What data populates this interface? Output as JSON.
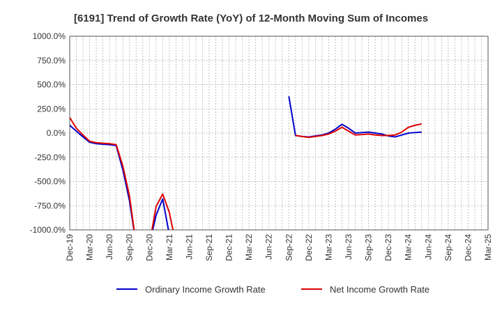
{
  "chart_data": {
    "type": "line",
    "title": "[6191]  Trend of Growth Rate (YoY) of 12-Month Moving Sum of Incomes",
    "xlabel": "",
    "ylabel": "",
    "ylim": [
      -1000,
      1000
    ],
    "y_ticks": [
      "1000.0%",
      "750.0%",
      "500.0%",
      "250.0%",
      "0.0%",
      "-250.0%",
      "-500.0%",
      "-750.0%",
      "-1000.0%"
    ],
    "y_tick_values": [
      1000,
      750,
      500,
      250,
      0,
      -250,
      -500,
      -750,
      -1000
    ],
    "x_ticks": [
      "Dec-19",
      "Mar-20",
      "Jun-20",
      "Sep-20",
      "Dec-20",
      "Mar-21",
      "Jun-21",
      "Sep-21",
      "Dec-21",
      "Mar-22",
      "Jun-22",
      "Sep-22",
      "Dec-22",
      "Mar-23",
      "Jun-23",
      "Sep-23",
      "Dec-23",
      "Mar-24",
      "Jun-24",
      "Sep-24",
      "Dec-24",
      "Mar-25"
    ],
    "grid": true,
    "legend_position": "bottom",
    "series": [
      {
        "name": "Ordinary Income Growth Rate",
        "color": "#0000cc",
        "values": [
          80,
          20,
          -40,
          -95,
          -110,
          -115,
          -120,
          -130,
          -380,
          -700,
          -1150,
          null,
          -1150,
          -850,
          -680,
          -1050,
          null,
          null,
          null,
          null,
          null,
          null,
          null,
          null,
          null,
          null,
          null,
          null,
          null,
          null,
          null,
          null,
          null,
          380,
          -25,
          -35,
          -40,
          -30,
          -20,
          0,
          40,
          90,
          50,
          0,
          5,
          10,
          0,
          -10,
          -30,
          -40,
          -20,
          0,
          5,
          10
        ]
      },
      {
        "name": "Net Income Growth Rate",
        "color": "#dd0000",
        "values": [
          160,
          50,
          -20,
          -85,
          -100,
          -105,
          -110,
          -120,
          -340,
          -650,
          -1150,
          null,
          -1150,
          -760,
          -630,
          -820,
          -1150,
          null,
          null,
          null,
          null,
          null,
          null,
          null,
          null,
          null,
          null,
          null,
          null,
          null,
          null,
          null,
          null,
          null,
          -25,
          -35,
          -45,
          -35,
          -25,
          -10,
          20,
          60,
          20,
          -20,
          -15,
          -10,
          -20,
          -25,
          -25,
          -20,
          10,
          60,
          80,
          95
        ]
      }
    ]
  }
}
